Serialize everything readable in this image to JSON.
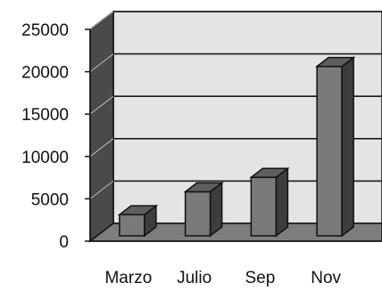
{
  "chart_data": {
    "type": "bar",
    "categories": [
      "Marzo",
      "Julio",
      "Sep",
      "Nov"
    ],
    "values": [
      2500,
      5200,
      6900,
      20000
    ],
    "title": "",
    "xlabel": "",
    "ylabel": "",
    "ylim": [
      0,
      25000
    ],
    "yticks": [
      "0",
      "5000",
      "10000",
      "15000",
      "20000",
      "25000"
    ],
    "grid": true,
    "style": "3d",
    "colors": {
      "bar_front": "#7a7a7a",
      "bar_top": "#5e5e5e",
      "bar_side": "#3d3d3d",
      "back_wall": "#e4e4e4",
      "side_wall": "#4a4a4a",
      "floor": "#7d7d7d",
      "gridline": "#1a1a1a",
      "outline": "#111111"
    }
  }
}
